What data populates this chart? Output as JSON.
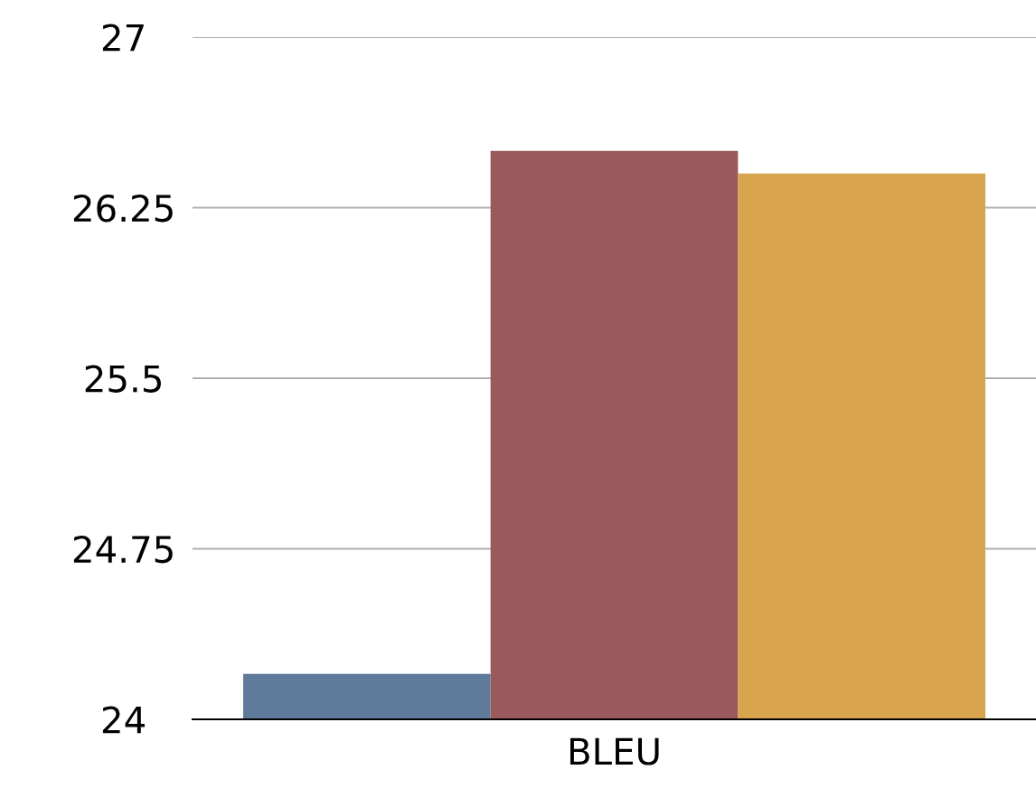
{
  "chart_data": {
    "type": "bar",
    "categories": [
      "BLEU"
    ],
    "series": [
      {
        "color": "#5f7a9b",
        "values": [
          24.2
        ]
      },
      {
        "color": "#9a5a5b",
        "values": [
          26.5
        ]
      },
      {
        "color": "#d8a54e",
        "values": [
          26.4
        ]
      }
    ],
    "ylim": [
      24,
      27
    ],
    "yticks": [
      24,
      24.75,
      25.5,
      26.25,
      27
    ],
    "grid": "y",
    "legend": false
  }
}
